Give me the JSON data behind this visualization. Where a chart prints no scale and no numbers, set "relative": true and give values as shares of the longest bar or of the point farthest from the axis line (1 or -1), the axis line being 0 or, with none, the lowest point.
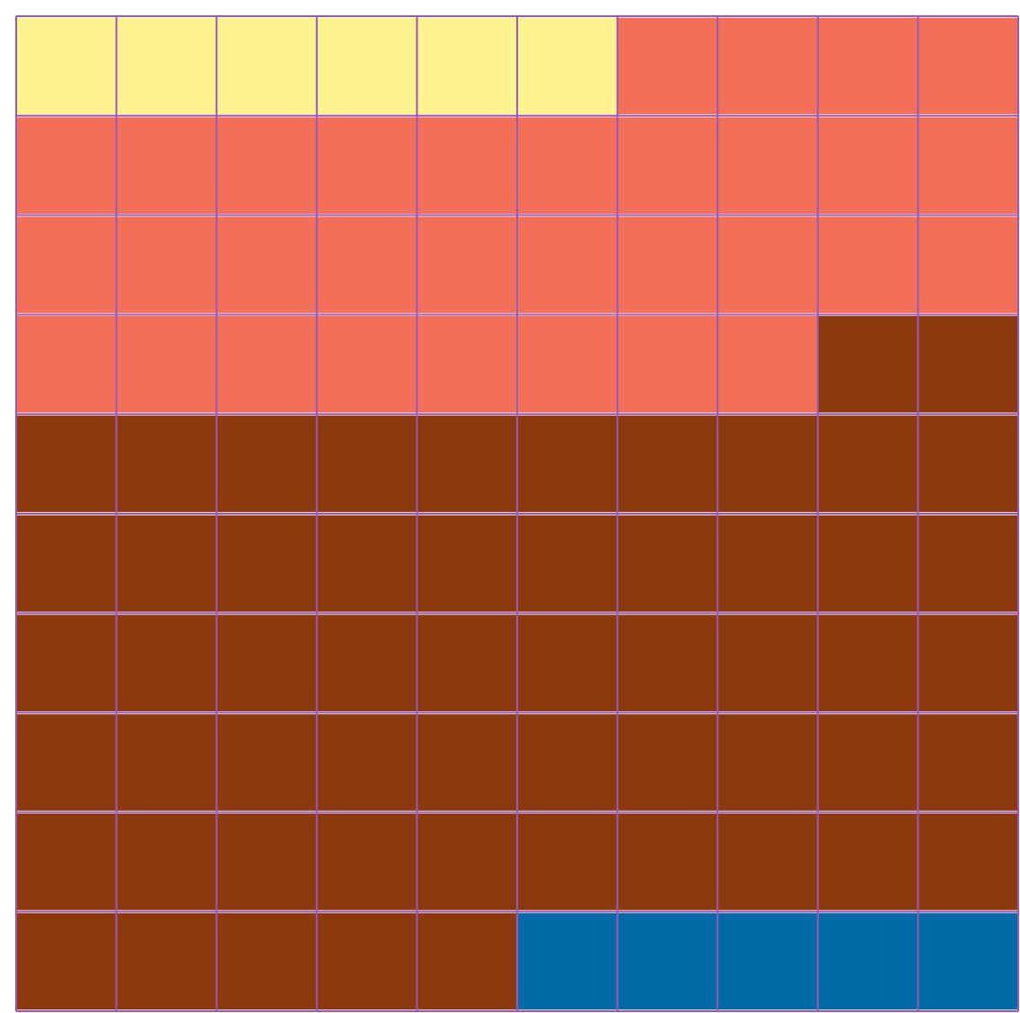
{
  "chart_data": {
    "type": "bar",
    "orientation": "horizontal",
    "stacked": true,
    "relative": true,
    "categories": [
      null,
      null,
      null,
      null,
      null,
      null,
      null,
      null,
      null,
      null
    ],
    "series": [
      {
        "color": "#fff291",
        "values": [
          0.6,
          null,
          null,
          null,
          null,
          null,
          null,
          null,
          null,
          null
        ]
      },
      {
        "color": "#f2705a",
        "values": [
          0.4,
          1,
          1,
          0.8,
          null,
          null,
          null,
          null,
          null,
          null
        ]
      },
      {
        "color": "#8b3a0f",
        "values": [
          null,
          null,
          null,
          0.2,
          1,
          1,
          1,
          1,
          1,
          0.5
        ]
      },
      {
        "color": "#006aa6",
        "values": [
          null,
          null,
          null,
          null,
          null,
          null,
          null,
          null,
          null,
          0.5
        ]
      }
    ]
  }
}
